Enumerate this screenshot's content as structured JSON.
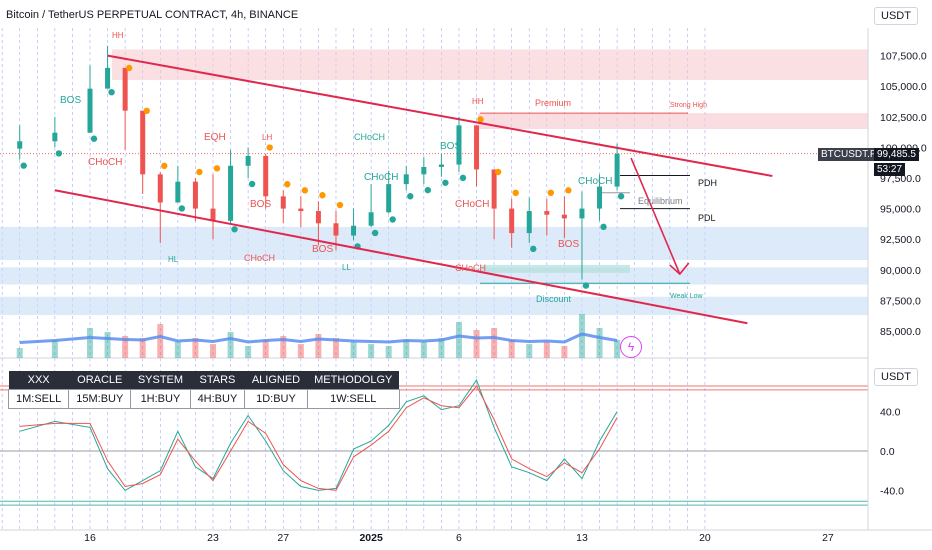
{
  "header": {
    "title": "Bitcoin / TetherUS PERPETUAL CONTRACT, 4h, BINANCE",
    "currency_main": "USDT",
    "currency_osc": "USDT"
  },
  "price_badge": {
    "symbol": "BTCUSDT.P",
    "price": "99,485.5",
    "countdown": "53:27"
  },
  "signal_table": {
    "headers": [
      "XXX",
      "ORACLE",
      "SYSTEM",
      "STARS",
      "ALIGNED",
      "METHODOLGY"
    ],
    "values": [
      "1M:SELL",
      "15M:BUY",
      "1H:BUY",
      "4H:BUY",
      "1D:BUY",
      "1W:SELL"
    ]
  },
  "annotations": {
    "hh_1": "HH",
    "hh_2": "HH",
    "lh": "LH",
    "hl": "HL",
    "ll": "LL",
    "eqh": "EQH",
    "bos_1": "BOS",
    "bos_2": "BOS",
    "bos_3": "BOS",
    "bos_4": "BOS",
    "bos_5": "BOS",
    "choch_1": "CHoCH",
    "choch_2": "CHoCH",
    "choch_3": "CHoCH",
    "choch_4": "CHoCH",
    "choch_5": "CHoCH",
    "choch_6": "CHoCH",
    "choch_7": "CHoCH",
    "premium": "Premium",
    "strong_high": "Strong High",
    "equilibrium": "Equilibrium",
    "discount": "Discount",
    "weak_low": "Weak Low",
    "pdh": "PDH",
    "pdl": "PDL"
  },
  "colors": {
    "bull": "#26a69a",
    "bear": "#ef5350",
    "trendline": "#e0284d",
    "volume_ma": "#5b8def",
    "dot_orange": "#ff9800",
    "dot_teal": "#26a69a",
    "premium_zone": "#f7c6cc",
    "discount_zone": "#c5dcf7",
    "grid_vertical": "#4f6ef7"
  },
  "chart_data": [
    {
      "type": "line",
      "subtype": "candlestick",
      "x_tick_labels": [
        "16",
        "23",
        "27",
        "2025",
        "6",
        "13",
        "20",
        "27"
      ],
      "y_tick_labels": [
        "85,000.0",
        "87,500.0",
        "90,000.0",
        "92,500.0",
        "95,000.0",
        "97,500.0",
        "100,000.0",
        "102,500.0",
        "105,000.0",
        "107,500.0"
      ],
      "ylim": [
        83500,
        108500
      ],
      "x": [
        "Dec 12",
        "Dec 14",
        "Dec 16",
        "Dec 17",
        "Dec 18",
        "Dec 19",
        "Dec 20",
        "Dec 21",
        "Dec 22",
        "Dec 23",
        "Dec 24",
        "Dec 25",
        "Dec 26",
        "Dec 27",
        "Dec 28",
        "Dec 29",
        "Dec 30",
        "Dec 31",
        "Jan 1",
        "Jan 2",
        "Jan 3",
        "Jan 4",
        "Jan 5",
        "Jan 6",
        "Jan 7",
        "Jan 8",
        "Jan 9",
        "Jan 10",
        "Jan 11",
        "Jan 12",
        "Jan 13",
        "Jan 14",
        "Jan 15"
      ],
      "close": [
        100500,
        101200,
        104800,
        106500,
        103000,
        97800,
        95500,
        97200,
        95000,
        94000,
        98500,
        99300,
        96000,
        95000,
        94800,
        93800,
        92800,
        93600,
        94700,
        97000,
        97800,
        98400,
        98600,
        101800,
        98200,
        95000,
        93000,
        94800,
        94500,
        94200,
        95000,
        96800,
        99485
      ],
      "high": [
        101800,
        102500,
        106700,
        108300,
        106000,
        102500,
        98000,
        98500,
        97500,
        97800,
        99800,
        100000,
        99500,
        96500,
        96000,
        95600,
        94800,
        95000,
        97000,
        98100,
        98500,
        99200,
        99500,
        102500,
        101800,
        97500,
        95800,
        95900,
        95800,
        96000,
        96400,
        97800,
        100300
      ],
      "low": [
        99000,
        100000,
        101200,
        105000,
        99800,
        96200,
        92200,
        95500,
        94000,
        92500,
        93800,
        97500,
        95000,
        93800,
        93500,
        92000,
        91600,
        92400,
        93500,
        94600,
        96500,
        97000,
        97600,
        98000,
        96800,
        92500,
        91800,
        92200,
        92800,
        92600,
        89200,
        94000,
        96500
      ],
      "levels": {
        "strong_high": 102800,
        "premium_zone": [
          101500,
          102800
        ],
        "upper_zone": [
          105500,
          108000
        ],
        "pdh": 97700,
        "equilibrium": 96300,
        "pdl": 95000,
        "weak_low": 88900,
        "discount_zones": [
          [
            90800,
            93500
          ],
          [
            88800,
            90200
          ],
          [
            86300,
            87800
          ]
        ]
      },
      "channel": {
        "upper": [
          {
            "x": "Dec 17",
            "y": 107500
          },
          {
            "x": "Jan 19",
            "y": 97500
          }
        ],
        "lower": [
          {
            "x": "Dec 14",
            "y": 96500
          },
          {
            "x": "Jan 19",
            "y": 85800
          }
        ]
      },
      "projection": [
        {
          "x": "Jan 15",
          "y": 98800
        },
        {
          "x": "Jan 18",
          "y": 89000
        }
      ]
    },
    {
      "type": "line",
      "y_tick_labels": [
        "40.0",
        "0.0",
        "-40.0"
      ],
      "ylim": [
        -55,
        80
      ],
      "reference_lines": [
        66,
        62,
        -51,
        -55
      ],
      "series": [
        {
          "values": [
            20,
            30,
            24,
            -18,
            -40,
            -30,
            -20,
            20,
            -16,
            -28,
            8,
            36,
            10,
            -20,
            -36,
            -40,
            -38,
            2,
            10,
            26,
            50,
            56,
            42,
            46,
            72,
            24,
            -16,
            -22,
            -30,
            -8,
            -28,
            10,
            40
          ]
        },
        {
          "values": [
            25,
            28,
            28,
            -10,
            -36,
            -33,
            -24,
            12,
            -10,
            -30,
            0,
            30,
            18,
            -14,
            -30,
            -38,
            -40,
            -6,
            6,
            20,
            44,
            54,
            46,
            44,
            66,
            32,
            -8,
            -18,
            -26,
            -12,
            -22,
            2,
            34
          ]
        }
      ]
    }
  ]
}
